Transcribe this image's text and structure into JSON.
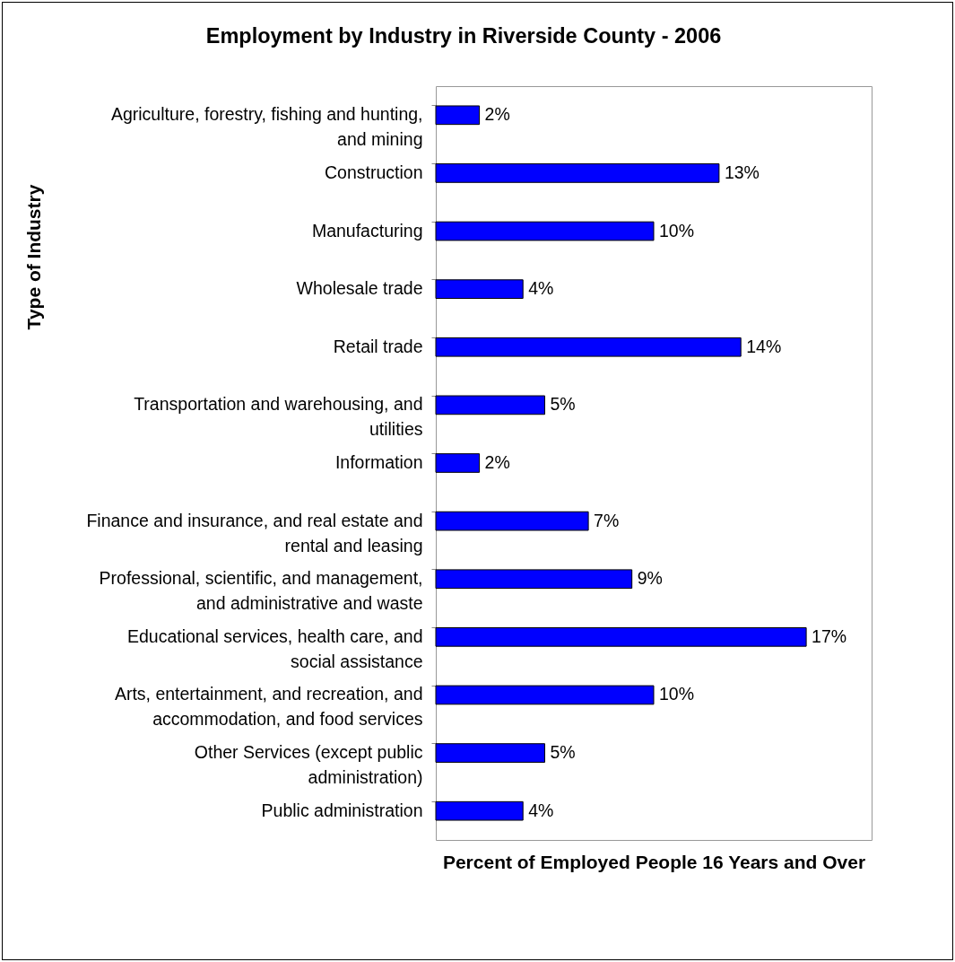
{
  "chart_data": {
    "type": "bar",
    "orientation": "horizontal",
    "title": "Employment by Industry in Riverside County - 2006",
    "xlabel": "Percent of Employed People 16 Years and Over",
    "ylabel": "Type of Industry",
    "categories": [
      "Agriculture, forestry, fishing and hunting, and mining",
      "Construction",
      "Manufacturing",
      "Wholesale trade",
      "Retail trade",
      "Transportation and warehousing, and utilities",
      "Information",
      "Finance and insurance, and real estate and rental and leasing",
      "Professional, scientific, and management, and administrative and waste",
      "Educational services, health care, and social assistance",
      "Arts, entertainment, and recreation, and accommodation, and food services",
      "Other Services (except public administration)",
      "Public administration"
    ],
    "values": [
      2,
      13,
      10,
      4,
      14,
      5,
      2,
      7,
      9,
      17,
      10,
      5,
      4
    ],
    "value_labels": [
      "2%",
      "13%",
      "10%",
      "4%",
      "14%",
      "5%",
      "2%",
      "7%",
      "9%",
      "17%",
      "10%",
      "5%",
      "4%"
    ],
    "color": "#0000ff",
    "xlim": [
      0,
      20
    ],
    "tick_labels": "y"
  }
}
